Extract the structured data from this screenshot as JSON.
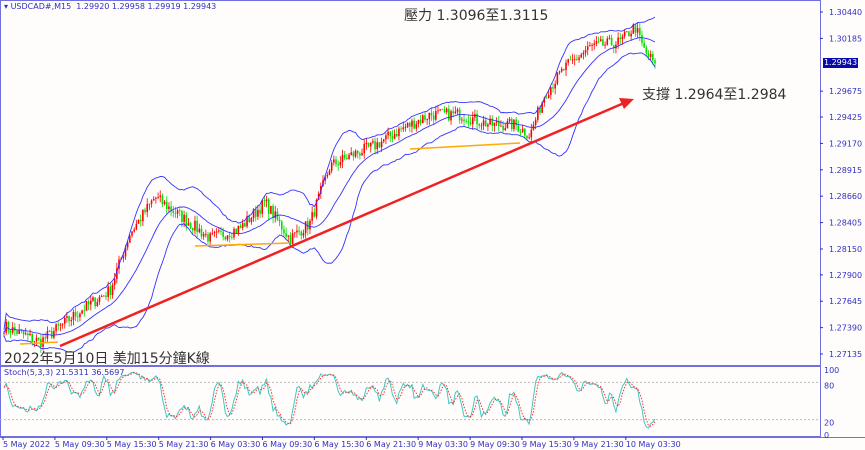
{
  "header": {
    "symbol": "USDCAD#,M15",
    "ohlc": "1.29920 1.29958 1.29919 1.29943"
  },
  "current_price": "1.29943",
  "annotations": {
    "resistance": "壓力 1.3096至1.3115",
    "support": "支撐 1.2964至1.2984",
    "caption": "2022年5月10日 美加15分鐘K線"
  },
  "indicator_label": "Stoch(5,3,3) 21.5311 36.5697",
  "colors": {
    "up": "#ff0000",
    "down": "#00dd00",
    "bands": "#3333ff",
    "trend": "#ee2222",
    "support_lines": "#ffaa00",
    "stoch_main": "#40c8c0",
    "stoch_signal": "#ff3030"
  },
  "chart_data": {
    "type": "candlestick",
    "timeframe": "M15",
    "price_ticks": [
      "1.30440",
      "1.30185",
      "1.29675",
      "1.29425",
      "1.29170",
      "1.28915",
      "1.28660",
      "1.28405",
      "1.28150",
      "1.27900",
      "1.27645",
      "1.27390",
      "1.27135"
    ],
    "ylim": [
      1.27135,
      1.3044
    ],
    "stoch_ticks": [
      "100",
      "80",
      "20",
      "0"
    ],
    "time_ticks": [
      "5 May 2022",
      "5 May 09:30",
      "5 May 15:30",
      "5 May 21:30",
      "6 May 03:30",
      "6 May 09:30",
      "6 May 15:30",
      "6 May 21:30",
      "9 May 03:30",
      "9 May 09:30",
      "9 May 15:30",
      "9 May 21:30",
      "10 May 03:30"
    ],
    "approx_close_path": [
      1.274,
      1.2725,
      1.2755,
      1.2775,
      1.283,
      1.2865,
      1.284,
      1.2825,
      1.2835,
      1.286,
      1.2825,
      1.284,
      1.2895,
      1.2905,
      1.2915,
      1.293,
      1.2945,
      1.2945,
      1.2935,
      1.2935,
      1.2925,
      1.2965,
      1.299,
      1.301,
      1.3015,
      1.303,
      1.3005,
      1.29943
    ],
    "indicators": [
      "Bollinger Bands",
      "Stochastic(5,3,3)"
    ]
  }
}
